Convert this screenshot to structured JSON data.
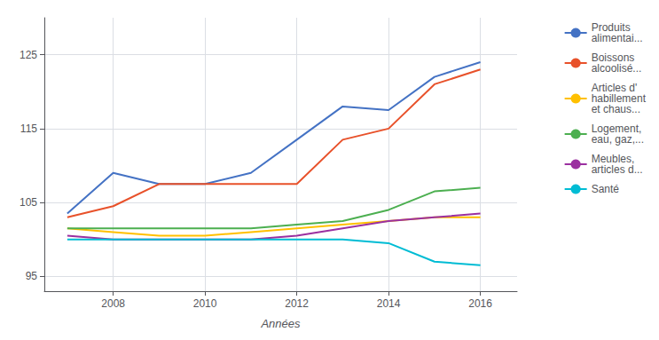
{
  "chart_data": {
    "type": "line",
    "xlabel": "Années",
    "x": [
      2007,
      2008,
      2009,
      2010,
      2011,
      2012,
      2013,
      2014,
      2015,
      2016
    ],
    "series": [
      {
        "name": "Produits\nalimentai...",
        "color": "#4472C4",
        "values": [
          103.5,
          109.0,
          107.5,
          107.5,
          109.0,
          113.5,
          118.0,
          117.5,
          122.0,
          124.0
        ]
      },
      {
        "name": "Boissons\nalcoolisé...",
        "color": "#E8512A",
        "values": [
          103.0,
          104.5,
          107.5,
          107.5,
          107.5,
          107.5,
          113.5,
          115.0,
          121.0,
          123.0
        ]
      },
      {
        "name": "Articles d'\nhabillement\net chaus...",
        "color": "#FFC000",
        "values": [
          101.5,
          101.0,
          100.5,
          100.5,
          101.0,
          101.5,
          102.0,
          102.5,
          103.0,
          103.0
        ]
      },
      {
        "name": "Logement,\neau, gaz,...",
        "color": "#4CAF50",
        "values": [
          101.5,
          101.5,
          101.5,
          101.5,
          101.5,
          102.0,
          102.5,
          104.0,
          106.5,
          107.0
        ]
      },
      {
        "name": "Meubles,\narticles d...",
        "color": "#9B30A0",
        "values": [
          100.5,
          100.0,
          100.0,
          100.0,
          100.0,
          100.5,
          101.5,
          102.5,
          103.0,
          103.5
        ]
      },
      {
        "name": "Santé",
        "color": "#00BCD4",
        "values": [
          100.0,
          100.0,
          100.0,
          100.0,
          100.0,
          100.0,
          100.0,
          99.5,
          97.0,
          96.5
        ]
      }
    ],
    "xlim": [
      2006.5,
      2016.8
    ],
    "ylim": [
      93,
      130
    ],
    "xticks": [
      2008,
      2010,
      2012,
      2014,
      2016
    ],
    "yticks": [
      95,
      105,
      115,
      125
    ],
    "grid": true,
    "legend": "right"
  }
}
